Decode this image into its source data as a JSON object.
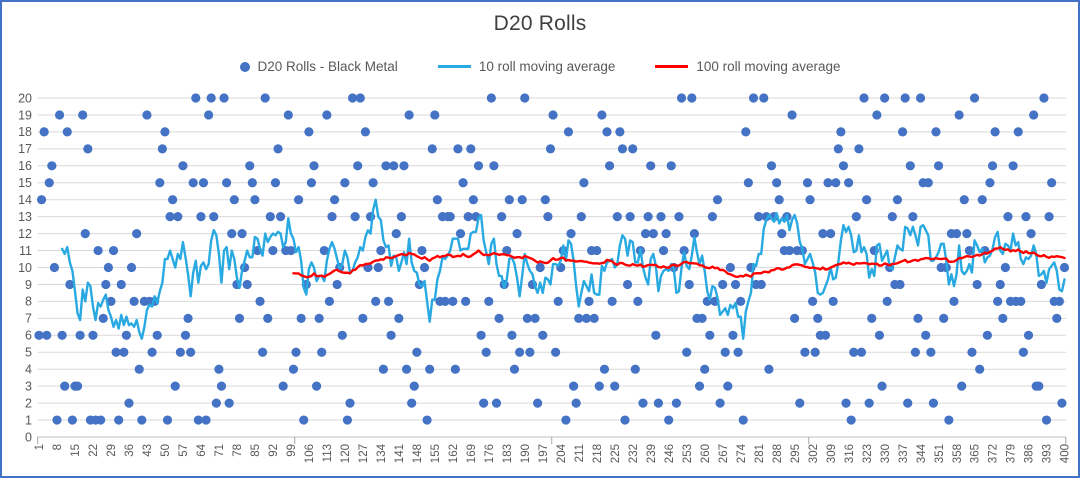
{
  "window": {
    "border_color": "#4472C4",
    "background_color": "#FFFFFF"
  },
  "text_colors": {
    "title": "#404040",
    "axis_labels": "#595959",
    "legend": "#595959"
  },
  "grid": {
    "line_color": "#D9D9D9",
    "axis_line_color": "#BFBFBF",
    "tick_color": "#A6A6A6"
  },
  "chart_data": {
    "type": "scatter",
    "title": "D20 Rolls",
    "xlabel": "",
    "ylabel": "",
    "x_range": [
      1,
      400
    ],
    "ylim": [
      0,
      20
    ],
    "grid": true,
    "legend_position": "top",
    "yticks": [
      0,
      1,
      2,
      3,
      4,
      5,
      6,
      7,
      8,
      9,
      10,
      11,
      12,
      13,
      14,
      15,
      16,
      17,
      18,
      19,
      20
    ],
    "xtick_labels": [
      1,
      8,
      15,
      22,
      29,
      36,
      43,
      50,
      57,
      64,
      71,
      78,
      85,
      92,
      99,
      106,
      113,
      120,
      127,
      134,
      141,
      148,
      155,
      162,
      169,
      176,
      183,
      190,
      197,
      204,
      211,
      218,
      225,
      232,
      239,
      246,
      253,
      260,
      267,
      274,
      281,
      288,
      295,
      302,
      309,
      316,
      323,
      330,
      337,
      344,
      351,
      358,
      365,
      372,
      379,
      386,
      393,
      400
    ],
    "x_axis_tick_boundaries": [
      0.5,
      100.5,
      200.5,
      300.5,
      400.5
    ],
    "series": [
      {
        "name": "D20 Rolls - Black Metal",
        "type": "scatter",
        "color": "#4472C4",
        "marker": "circle",
        "values": [
          6,
          14,
          18,
          6,
          15,
          16,
          10,
          1,
          19,
          6,
          3,
          18,
          9,
          1,
          3,
          3,
          6,
          19,
          12,
          17,
          1,
          6,
          1,
          11,
          1,
          7,
          9,
          10,
          8,
          11,
          5,
          1,
          9,
          5,
          6,
          2,
          10,
          8,
          12,
          4,
          1,
          8,
          19,
          8,
          5,
          8,
          6,
          15,
          17,
          18,
          1,
          13,
          14,
          3,
          13,
          5,
          16,
          6,
          7,
          5,
          15,
          20,
          1,
          13,
          15,
          1,
          19,
          20,
          13,
          2,
          4,
          3,
          20,
          15,
          2,
          12,
          14,
          9,
          7,
          12,
          10,
          9,
          16,
          15,
          14,
          11,
          8,
          5,
          20,
          7,
          13,
          11,
          15,
          17,
          13,
          3,
          11,
          19,
          11,
          4,
          5,
          14,
          7,
          1,
          9,
          18,
          15,
          16,
          3,
          7,
          5,
          11,
          19,
          8,
          13,
          14,
          9,
          10,
          6,
          15,
          1,
          2,
          20,
          13,
          16,
          20,
          7,
          18,
          10,
          13,
          15,
          8,
          10,
          11,
          4,
          16,
          8,
          6,
          16,
          12,
          7,
          13,
          16,
          4,
          19,
          2,
          3,
          5,
          9,
          11,
          10,
          1,
          4,
          17,
          19,
          14,
          8,
          13,
          8,
          13,
          13,
          8,
          4,
          17,
          12,
          15,
          8,
          13,
          17,
          14,
          13,
          16,
          6,
          2,
          5,
          8,
          20,
          16,
          2,
          7,
          13,
          9,
          11,
          14,
          6,
          4,
          12,
          5,
          14,
          20,
          7,
          5,
          9,
          7,
          2,
          10,
          6,
          14,
          13,
          17,
          19,
          5,
          8,
          10,
          11,
          1,
          18,
          12,
          3,
          2,
          7,
          13,
          15,
          7,
          8,
          11,
          7,
          11,
          3,
          19,
          4,
          18,
          16,
          8,
          3,
          13,
          18,
          17,
          1,
          9,
          13,
          17,
          4,
          8,
          11,
          2,
          12,
          13,
          16,
          12,
          6,
          2,
          13,
          11,
          12,
          1,
          16,
          10,
          2,
          13,
          20,
          11,
          5,
          9,
          20,
          12,
          7,
          3,
          7,
          4,
          8,
          6,
          13,
          8,
          14,
          2,
          9,
          5,
          3,
          10,
          6,
          9,
          5,
          8,
          1,
          18,
          15,
          10,
          20,
          9,
          13,
          9,
          20,
          13,
          4,
          16,
          13,
          15,
          14,
          12,
          11,
          13,
          11,
          19,
          7,
          11,
          2,
          11,
          5,
          15,
          14,
          8,
          5,
          7,
          6,
          12,
          6,
          15,
          12,
          8,
          15,
          17,
          18,
          16,
          2,
          15,
          1,
          5,
          13,
          17,
          5,
          20,
          14,
          2,
          7,
          11,
          19,
          6,
          3,
          20,
          8,
          10,
          13,
          9,
          14,
          9,
          18,
          20,
          2,
          16,
          13,
          5,
          7,
          20,
          15,
          6,
          15,
          5,
          2,
          18,
          16,
          10,
          7,
          10,
          1,
          12,
          8,
          12,
          19,
          3,
          14,
          12,
          11,
          5,
          20,
          9,
          4,
          14,
          11,
          6,
          15,
          16,
          18,
          8,
          9,
          7,
          10,
          13,
          8,
          16,
          8,
          18,
          8,
          5,
          13,
          6,
          12,
          19,
          3,
          3,
          9,
          20,
          1,
          13,
          15,
          8,
          7,
          8,
          2,
          10
        ]
      },
      {
        "name": "10 roll moving average",
        "type": "line",
        "color": "#29A9E1",
        "derived_from_series": 0,
        "moving_average_window": 10
      },
      {
        "name": "100 roll moving average",
        "type": "line",
        "color": "#FF0000",
        "derived_from_series": 0,
        "moving_average_window": 100
      }
    ]
  }
}
